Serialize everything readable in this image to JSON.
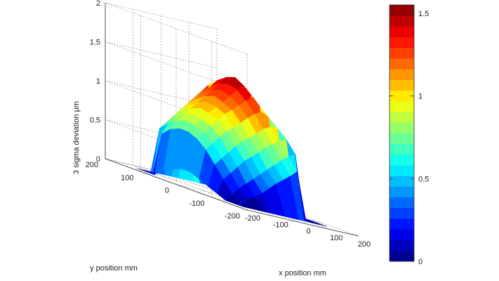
{
  "chart_data": {
    "type": "surface",
    "title": "",
    "xlabel": "x position mm",
    "ylabel": "y position mm",
    "zlabel": "3 sigma deviation   µm",
    "xlim": [
      -200,
      200
    ],
    "ylim": [
      -200,
      200
    ],
    "zlim": [
      0,
      2
    ],
    "xticks": [
      -200,
      -100,
      0,
      100,
      200
    ],
    "yticks": [
      -200,
      -100,
      0,
      100,
      200
    ],
    "zticks": [
      0,
      0.5,
      1,
      1.5,
      2
    ],
    "xtick_labels": [
      "-200",
      "-100",
      "0",
      "100",
      "200"
    ],
    "ytick_labels": [
      "-200",
      "-100",
      "0",
      "100",
      "200"
    ],
    "ztick_labels": [
      "0",
      "0.5",
      "1",
      "1.5",
      "2"
    ],
    "grid": true,
    "colormap": "jet",
    "colorbar": {
      "range": [
        0,
        1.55
      ],
      "ticks": [
        0,
        0.5,
        1,
        1.5
      ],
      "tick_labels": [
        "0",
        "0.5",
        "1",
        "1.5"
      ],
      "levels": 24
    },
    "x": [
      -150,
      -125,
      -100,
      -75,
      -50,
      -25,
      0,
      25,
      50,
      75,
      100,
      125,
      150
    ],
    "y": [
      -150,
      -125,
      -100,
      -75,
      -50,
      -25,
      0,
      25,
      50,
      75,
      100,
      125,
      150
    ],
    "z_description_rows_are_y_cols_are_x": [
      [
        0.0,
        0.0,
        0.0,
        0.0,
        0.0,
        0.0,
        0.0,
        0.0,
        0.0,
        0.0,
        0.0,
        0.0,
        0.0
      ],
      [
        0.0,
        0.0,
        0.1,
        0.15,
        0.22,
        0.3,
        0.38,
        0.45,
        0.52,
        0.6,
        0.0,
        0.0,
        0.0
      ],
      [
        0.0,
        0.1,
        0.2,
        0.28,
        0.36,
        0.44,
        0.52,
        0.6,
        0.68,
        0.75,
        0.8,
        0.0,
        0.0
      ],
      [
        0.05,
        0.25,
        0.35,
        0.45,
        0.55,
        0.62,
        0.7,
        0.78,
        0.85,
        0.9,
        0.95,
        0.3,
        0.0
      ],
      [
        0.1,
        0.4,
        0.5,
        0.6,
        0.7,
        0.78,
        0.85,
        0.92,
        1.0,
        1.05,
        1.05,
        0.5,
        0.0
      ],
      [
        0.15,
        0.55,
        0.65,
        0.75,
        0.85,
        0.92,
        1.0,
        1.08,
        1.15,
        1.2,
        1.15,
        0.6,
        0.0
      ],
      [
        0.2,
        0.65,
        0.75,
        0.85,
        0.95,
        1.05,
        1.12,
        1.2,
        1.28,
        1.35,
        1.25,
        0.65,
        0.0
      ],
      [
        0.2,
        0.7,
        0.8,
        0.9,
        1.0,
        1.1,
        1.18,
        1.28,
        1.38,
        1.45,
        1.35,
        0.65,
        0.0
      ],
      [
        0.15,
        0.7,
        0.82,
        0.92,
        1.02,
        1.12,
        1.22,
        1.32,
        1.42,
        1.52,
        1.4,
        0.6,
        0.0
      ],
      [
        0.1,
        0.65,
        0.78,
        0.88,
        0.98,
        1.08,
        1.18,
        1.28,
        1.38,
        1.48,
        1.35,
        0.5,
        0.0
      ],
      [
        0.0,
        0.55,
        0.7,
        0.8,
        0.9,
        1.0,
        1.1,
        1.2,
        1.3,
        1.4,
        1.2,
        0.0,
        0.0
      ],
      [
        0.0,
        0.0,
        0.6,
        0.7,
        0.8,
        0.9,
        1.0,
        1.1,
        1.2,
        1.3,
        0.0,
        0.0,
        0.0
      ],
      [
        0.0,
        0.0,
        0.0,
        0.0,
        0.0,
        0.0,
        0.0,
        0.0,
        0.0,
        0.0,
        0.0,
        0.0,
        0.0
      ]
    ]
  }
}
